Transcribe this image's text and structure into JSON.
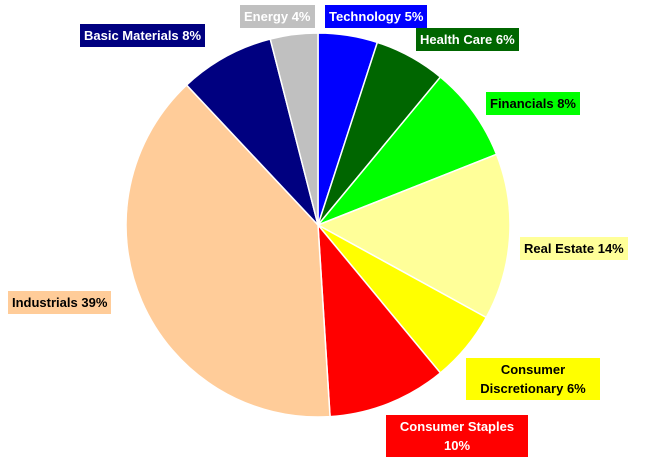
{
  "chart_data": {
    "type": "pie",
    "categories": [
      "Technology",
      "Health Care",
      "Financials",
      "Real Estate",
      "Consumer Discretionary",
      "Consumer Staples",
      "Industrials",
      "Basic Materials",
      "Energy"
    ],
    "values": [
      5,
      6,
      8,
      14,
      6,
      10,
      39,
      8,
      4
    ],
    "value_labels": [
      "5%",
      "6%",
      "8%",
      "14%",
      "6%",
      "10%",
      "39%",
      "8%",
      "4%"
    ],
    "colors": [
      "#0000ff",
      "#006600",
      "#00ff00",
      "#ffff99",
      "#ffff00",
      "#ff0000",
      "#ffcc99",
      "#000080",
      "#c0c0c0"
    ]
  }
}
